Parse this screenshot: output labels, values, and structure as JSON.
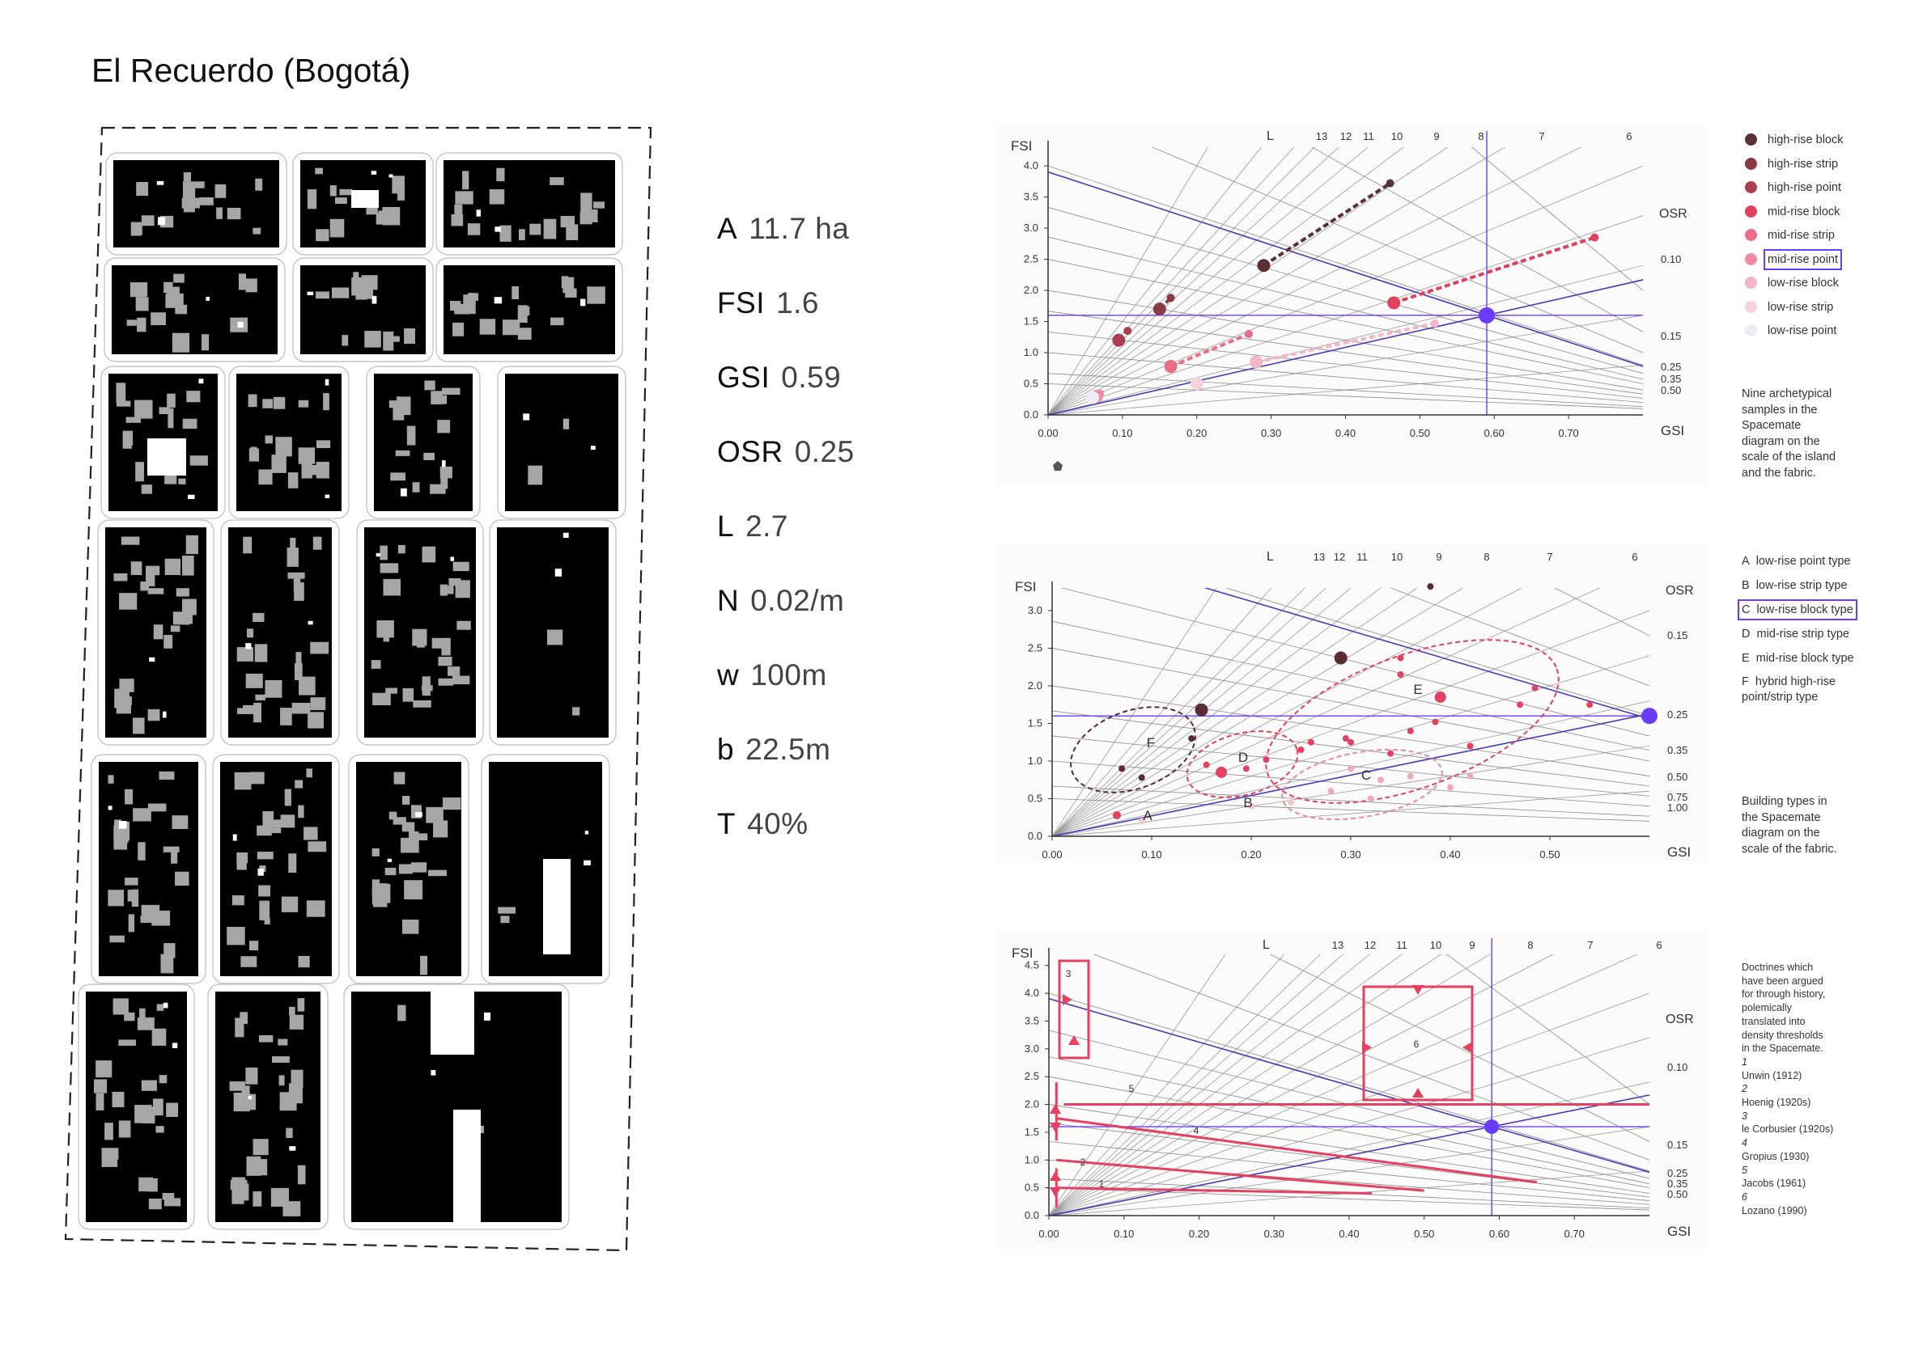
{
  "title": "El Recuerdo (Bogotá)",
  "metrics": [
    {
      "k": "A",
      "v": "11.7 ha"
    },
    {
      "k": "FSI",
      "v": "1.6"
    },
    {
      "k": "GSI",
      "v": "0.59"
    },
    {
      "k": "OSR",
      "v": "0.25"
    },
    {
      "k": "L",
      "v": "2.7"
    },
    {
      "k": "N",
      "v": "0.02/m"
    },
    {
      "k": "w",
      "v": "100m"
    },
    {
      "k": "b",
      "v": "22.5m"
    },
    {
      "k": "T",
      "v": "40%"
    }
  ],
  "colors": {
    "accent": "#6a3cff",
    "pink": "#e5405f",
    "dark": "#5a2b33",
    "building": "#000000",
    "courtyard": "#a6a6a6",
    "panel_bg": "#fbfbfb"
  },
  "chart_data": [
    {
      "type": "scatter",
      "xlabel": "GSI",
      "ylabel": "FSI",
      "ylim": [
        0,
        4.3
      ],
      "xlim": [
        0,
        0.8
      ],
      "xticks": [
        "0.00",
        "0.10",
        "0.20",
        "0.30",
        "0.40",
        "0.50",
        "0.60",
        "0.70"
      ],
      "yticks": [
        "0.0",
        "0.5",
        "1.0",
        "1.5",
        "2.0",
        "2.5",
        "3.0",
        "3.5",
        "4.0"
      ],
      "L_label": "L",
      "L_values": [
        "13",
        "12",
        "11",
        "10",
        "9",
        "8",
        "7",
        "6"
      ],
      "osr_label": "OSR",
      "osr_values": [
        "0.10",
        "0.15",
        "0.25",
        "0.35",
        "0.50"
      ],
      "highlight": {
        "x": 0.59,
        "y": 1.6
      },
      "series": [
        {
          "name": "high-rise block",
          "color": "#5a2f35",
          "points": [
            [
              0.29,
              2.4
            ],
            [
              0.46,
              3.72
            ]
          ]
        },
        {
          "name": "high-rise strip",
          "color": "#8a3a47",
          "points": [
            [
              0.15,
              1.7
            ],
            [
              0.165,
              1.88
            ]
          ]
        },
        {
          "name": "high-rise point",
          "color": "#a93f4f",
          "points": [
            [
              0.095,
              1.2
            ],
            [
              0.107,
              1.35
            ]
          ]
        },
        {
          "name": "mid-rise block",
          "color": "#e0405c",
          "points": [
            [
              0.465,
              1.8
            ],
            [
              0.735,
              2.85
            ]
          ]
        },
        {
          "name": "mid-rise strip",
          "color": "#ec6c85",
          "points": [
            [
              0.165,
              0.78
            ],
            [
              0.27,
              1.3
            ]
          ]
        },
        {
          "name": "mid-rise point",
          "color": "#f08aa0",
          "points": [
            [
              0.065,
              0.3
            ],
            [
              0.07,
              0.34
            ]
          ]
        },
        {
          "name": "low-rise block",
          "color": "#f3b6c4",
          "points": [
            [
              0.28,
              0.85
            ],
            [
              0.52,
              1.47
            ]
          ]
        },
        {
          "name": "low-rise strip",
          "color": "#f6d3dc",
          "points": [
            [
              0.2,
              0.5
            ]
          ]
        },
        {
          "name": "low-rise point",
          "color": "#efeaf3",
          "points": [
            [
              0.06,
              0.28
            ]
          ]
        }
      ],
      "note": "Nine archetypical\nsamples in the\nSpacemate\ndiagram on the\nscale of the island\nand the fabric."
    },
    {
      "type": "scatter",
      "xlabel": "GSI",
      "ylabel": "FSI",
      "xlim": [
        0,
        0.6
      ],
      "ylim": [
        0,
        3.3
      ],
      "xticks": [
        "0.00",
        "0.10",
        "0.20",
        "0.30",
        "0.40",
        "0.50"
      ],
      "yticks": [
        "0.0",
        "0.5",
        "1.0",
        "1.5",
        "2.0",
        "2.5",
        "3.0"
      ],
      "L_label": "L",
      "L_values": [
        "13",
        "12",
        "11",
        "10",
        "9",
        "8",
        "7",
        "6"
      ],
      "osr_label": "OSR",
      "osr_values": [
        "0.15",
        "0.25",
        "0.35",
        "0.50",
        "0.75",
        "1.00"
      ],
      "highlight": {
        "x": 0.59,
        "y": 1.6
      },
      "groups": [
        {
          "label": "A",
          "name": "low-rise point type"
        },
        {
          "label": "B",
          "name": "low-rise strip type"
        },
        {
          "label": "C",
          "name": "low-rise block type"
        },
        {
          "label": "D",
          "name": "mid-rise strip type"
        },
        {
          "label": "E",
          "name": "mid-rise block type"
        },
        {
          "label": "F",
          "name": "hybrid high-rise point/strip type"
        }
      ],
      "selected_group": "C",
      "note": "Building types in\nthe Spacemate\ndiagram on the\nscale of the fabric."
    },
    {
      "type": "scatter",
      "xlabel": "GSI",
      "ylabel": "FSI",
      "xlim": [
        0,
        0.8
      ],
      "ylim": [
        0,
        4.7
      ],
      "xticks": [
        "0.00",
        "0.10",
        "0.20",
        "0.30",
        "0.40",
        "0.50",
        "0.60",
        "0.70"
      ],
      "yticks": [
        "0.0",
        "0.5",
        "1.0",
        "1.5",
        "2.0",
        "2.5",
        "3.0",
        "3.5",
        "4.0",
        "4.5"
      ],
      "L_label": "L",
      "L_values": [
        "13",
        "12",
        "11",
        "10",
        "9",
        "8",
        "7",
        "6"
      ],
      "osr_label": "OSR",
      "osr_values": [
        "0.10",
        "0.15",
        "0.25",
        "0.35",
        "0.50"
      ],
      "highlight": {
        "x": 0.59,
        "y": 1.6
      },
      "doctrine_labels": [
        "1",
        "2",
        "3",
        "4",
        "5",
        "6"
      ],
      "doctrines": [
        {
          "n": "1",
          "name": "Unwin (1912)"
        },
        {
          "n": "2",
          "name": "Hoenig (1920s)"
        },
        {
          "n": "3",
          "name": "le Corbusier (1920s)"
        },
        {
          "n": "4",
          "name": "Gropius (1930)"
        },
        {
          "n": "5",
          "name": "Jacobs (1961)"
        },
        {
          "n": "6",
          "name": "Lozano (1990)"
        }
      ],
      "note": "Doctrines which\nhave been argued\nfor through history,\npolemically\ntranslated into\ndensity thresholds\nin the Spacemate."
    }
  ]
}
